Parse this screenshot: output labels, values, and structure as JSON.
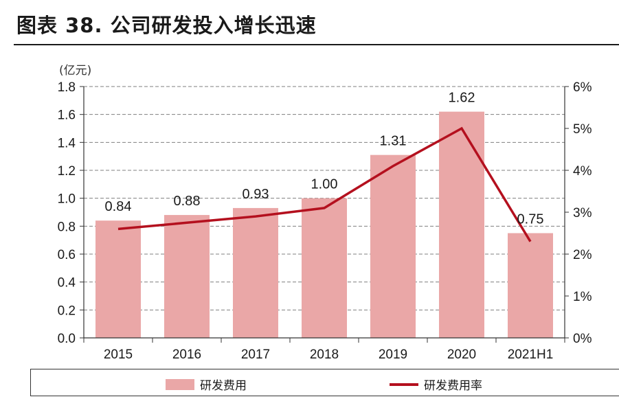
{
  "title": "图表 38. 公司研发投入增长迅速",
  "colors": {
    "bar": "#eaa7a7",
    "line": "#b4101e",
    "grid": "#7f7f7f",
    "axis": "#333333"
  },
  "chart_data": {
    "type": "bar",
    "categories": [
      "2015",
      "2016",
      "2017",
      "2018",
      "2019",
      "2020",
      "2021H1"
    ],
    "y_unit_label": "(亿元)",
    "ylim": [
      0,
      1.8
    ],
    "y_ticks": [
      "0.0",
      "0.2",
      "0.4",
      "0.6",
      "0.8",
      "1.0",
      "1.2",
      "1.4",
      "1.6",
      "1.8"
    ],
    "y2lim": [
      0,
      6
    ],
    "y2_ticks": [
      "0%",
      "1%",
      "2%",
      "3%",
      "4%",
      "5%",
      "6%"
    ],
    "grid": "horizontal dashed",
    "legend_position": "bottom",
    "series": [
      {
        "name": "研发费用",
        "type": "bar",
        "axis": "left",
        "values": [
          0.84,
          0.88,
          0.93,
          1.0,
          1.31,
          1.62,
          0.75
        ],
        "labels": [
          "0.84",
          "0.88",
          "0.93",
          "1.00",
          "1.31",
          "1.62",
          "0.75"
        ]
      },
      {
        "name": "研发费用率",
        "type": "line",
        "axis": "right",
        "values": [
          2.6,
          2.75,
          2.9,
          3.1,
          4.1,
          5.0,
          2.3
        ]
      }
    ]
  }
}
